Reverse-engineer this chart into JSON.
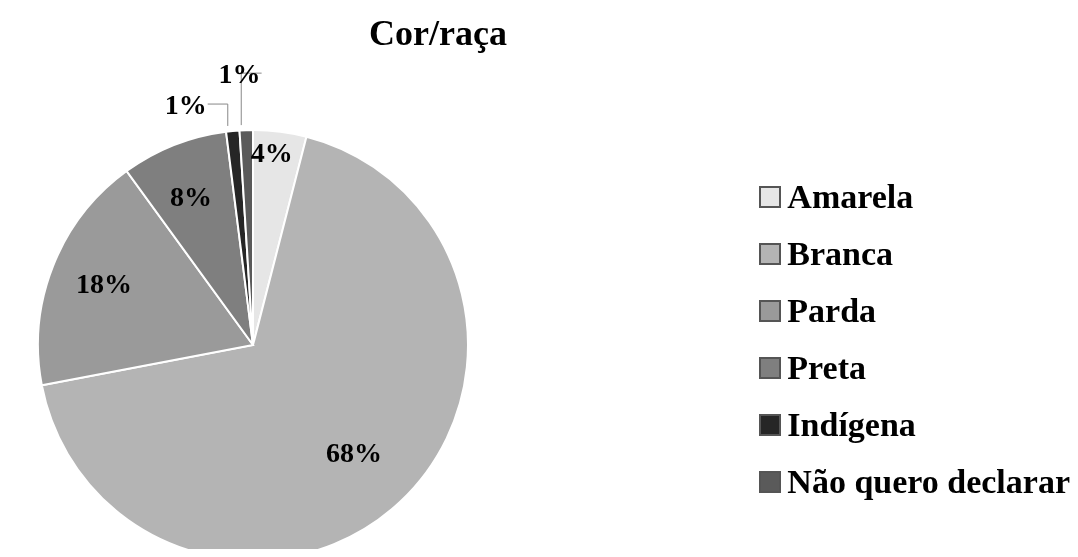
{
  "chart_data": {
    "type": "pie",
    "title": "Cor/raça",
    "categories": [
      "Amarela",
      "Branca",
      "Parda",
      "Preta",
      "Indígena",
      "Não quero declarar"
    ],
    "values": [
      4,
      68,
      18,
      8,
      1,
      1
    ],
    "colors": [
      "#e6e6e6",
      "#b4b4b4",
      "#9a9a9a",
      "#7f7f7f",
      "#262626",
      "#5a5a5a"
    ],
    "value_labels": [
      "4%",
      "68%",
      "18%",
      "8%",
      "1%",
      "1%"
    ],
    "legend": "right"
  }
}
